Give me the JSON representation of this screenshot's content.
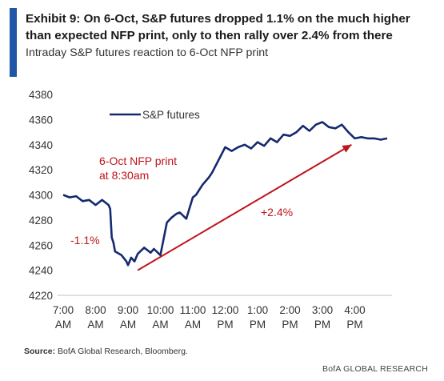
{
  "header": {
    "title": "Exhibit 9: On 6-Oct, S&P futures dropped 1.1% on the much higher than expected NFP print, only to then rally over 2.4% from there",
    "subtitle": "Intraday S&P futures reaction to 6-Oct NFP print"
  },
  "footer": {
    "source_label": "Source:",
    "source_text": "BofA Global Research, Bloomberg.",
    "brand": "BofA GLOBAL RESEARCH"
  },
  "colors": {
    "accent": "#1f56a8",
    "series": "#15296e",
    "annotation": "#c0141b",
    "axis": "#bfbfbf"
  },
  "chart_data": {
    "type": "line",
    "title": "",
    "xlabel": "",
    "ylabel": "",
    "ylim": [
      4220,
      4380
    ],
    "yticks": [
      4220,
      4240,
      4260,
      4280,
      4300,
      4320,
      4340,
      4360,
      4380
    ],
    "xlim_hours": [
      7.0,
      17.1
    ],
    "xticks": [
      {
        "t": 7,
        "line1": "7:00",
        "line2": "AM"
      },
      {
        "t": 8,
        "line1": "8:00",
        "line2": "AM"
      },
      {
        "t": 9,
        "line1": "9:00",
        "line2": "AM"
      },
      {
        "t": 10,
        "line1": "10:00",
        "line2": "AM"
      },
      {
        "t": 11,
        "line1": "11:00",
        "line2": "AM"
      },
      {
        "t": 12,
        "line1": "12:00",
        "line2": "PM"
      },
      {
        "t": 13,
        "line1": "1:00",
        "line2": "PM"
      },
      {
        "t": 14,
        "line1": "2:00",
        "line2": "PM"
      },
      {
        "t": 15,
        "line1": "3:00",
        "line2": "PM"
      },
      {
        "t": 16,
        "line1": "4:00",
        "line2": "PM"
      }
    ],
    "grid": false,
    "legend_position": "top-left",
    "series": [
      {
        "name": "S&P futures",
        "x": [
          7.0,
          7.2,
          7.4,
          7.6,
          7.8,
          8.0,
          8.2,
          8.4,
          8.45,
          8.5,
          8.55,
          8.6,
          8.8,
          8.95,
          9.0,
          9.1,
          9.2,
          9.3,
          9.5,
          9.7,
          9.8,
          10.0,
          10.2,
          10.35,
          10.5,
          10.6,
          10.8,
          11.0,
          11.1,
          11.3,
          11.5,
          11.6,
          11.8,
          12.0,
          12.2,
          12.4,
          12.6,
          12.8,
          13.0,
          13.2,
          13.4,
          13.6,
          13.8,
          14.0,
          14.2,
          14.4,
          14.6,
          14.8,
          15.0,
          15.2,
          15.4,
          15.6,
          15.8,
          16.0,
          16.2,
          16.4,
          16.6,
          16.8,
          17.0
        ],
        "y": [
          4300,
          4298,
          4299,
          4295,
          4296,
          4292,
          4296,
          4292,
          4289,
          4266,
          4262,
          4255,
          4252,
          4247,
          4244,
          4250,
          4247,
          4253,
          4258,
          4254,
          4257,
          4252,
          4278,
          4282,
          4285,
          4286,
          4281,
          4298,
          4300,
          4308,
          4314,
          4318,
          4328,
          4338,
          4335,
          4338,
          4340,
          4337,
          4342,
          4339,
          4345,
          4342,
          4348,
          4347,
          4350,
          4355,
          4351,
          4356,
          4358,
          4354,
          4353,
          4356,
          4350,
          4345,
          4346,
          4345,
          4345,
          4344,
          4345
        ]
      }
    ],
    "annotations": {
      "nfp_label_line1": "6-Oct NFP print",
      "nfp_label_line2": "at 8:30am",
      "drop_label": "-1.1%",
      "rally_label": "+2.4%",
      "rally_arrow": {
        "from": {
          "t": 9.3,
          "y": 4240
        },
        "to": {
          "t": 15.9,
          "y": 4340
        }
      }
    }
  }
}
